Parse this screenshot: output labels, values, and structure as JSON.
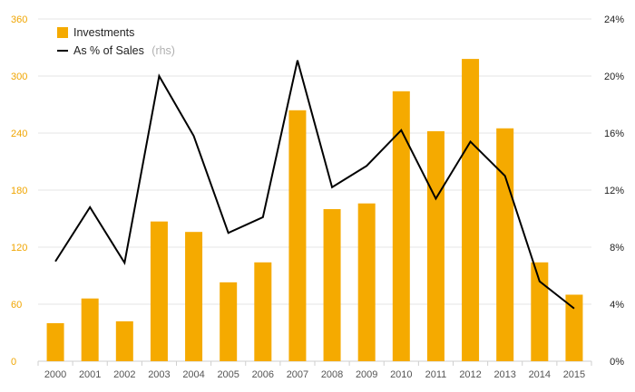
{
  "chart_data": {
    "type": "bar",
    "categories": [
      "2000",
      "2001",
      "2002",
      "2003",
      "2004",
      "2005",
      "2006",
      "2007",
      "2008",
      "2009",
      "2010",
      "2011",
      "2012",
      "2013",
      "2014",
      "2015"
    ],
    "series": [
      {
        "name": "Investments",
        "type": "bar",
        "axis": "left",
        "color": "#f5aa00",
        "values": [
          40,
          66,
          42,
          147,
          136,
          83,
          104,
          264,
          160,
          166,
          284,
          242,
          318,
          245,
          104,
          70
        ]
      },
      {
        "name": "As % of Sales",
        "note": "(rhs)",
        "type": "line",
        "axis": "right",
        "color": "#000000",
        "values": [
          7.0,
          10.8,
          6.9,
          20.0,
          15.8,
          9.0,
          10.1,
          21.1,
          12.2,
          13.7,
          16.2,
          11.4,
          15.4,
          13.0,
          5.6,
          3.7
        ]
      }
    ],
    "y_left": {
      "min": 0,
      "max": 360,
      "ticks": [
        "0",
        "60",
        "120",
        "180",
        "240",
        "300",
        "360"
      ]
    },
    "y_right": {
      "min": 0,
      "max": 24,
      "ticks": [
        "0%",
        "4%",
        "8%",
        "12%",
        "16%",
        "20%",
        "24%"
      ]
    },
    "grid": true,
    "legend_position": "top-left",
    "title": "",
    "xlabel": "",
    "ylabel": ""
  }
}
